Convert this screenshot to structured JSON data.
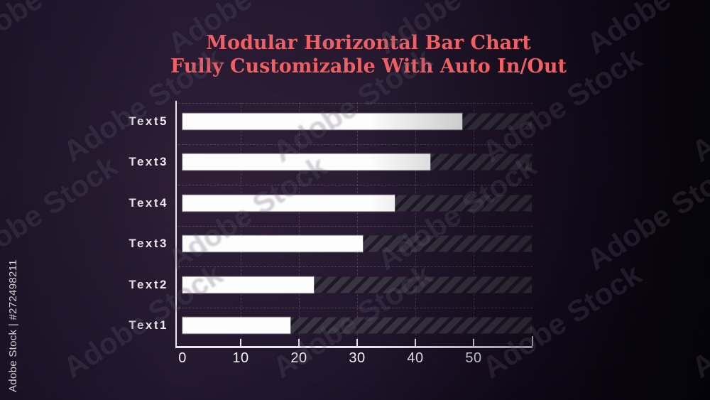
{
  "title": {
    "line1": "Modular Horizontal Bar Chart",
    "line2": "Fully Customizable With Auto In/Out",
    "color": "#ef5f64"
  },
  "watermark": {
    "tile_text": "Adobe Stock",
    "id_text": "Adobe Stock | #272498211"
  },
  "chart_data": {
    "type": "bar",
    "orientation": "horizontal",
    "title": "Modular Horizontal Bar Chart — Fully Customizable With Auto In/Out",
    "categories": [
      "Text5",
      "Text3",
      "Text4",
      "Text3",
      "Text2",
      "Text1"
    ],
    "values": [
      48,
      42.5,
      36.5,
      31,
      22.5,
      18.5
    ],
    "x_ticks": [
      0,
      10,
      20,
      30,
      40,
      50
    ],
    "xlim": [
      0,
      61
    ],
    "track_max": 60,
    "grid": "dashed",
    "legend": "none",
    "bar_color": "#fdfdfd",
    "track_color": "#3a3443",
    "track_hatch": "diagonal-stripes",
    "axis_color": "#e9e6ee",
    "label_color": "#f4f1f6",
    "background_color": "#1c1226"
  }
}
